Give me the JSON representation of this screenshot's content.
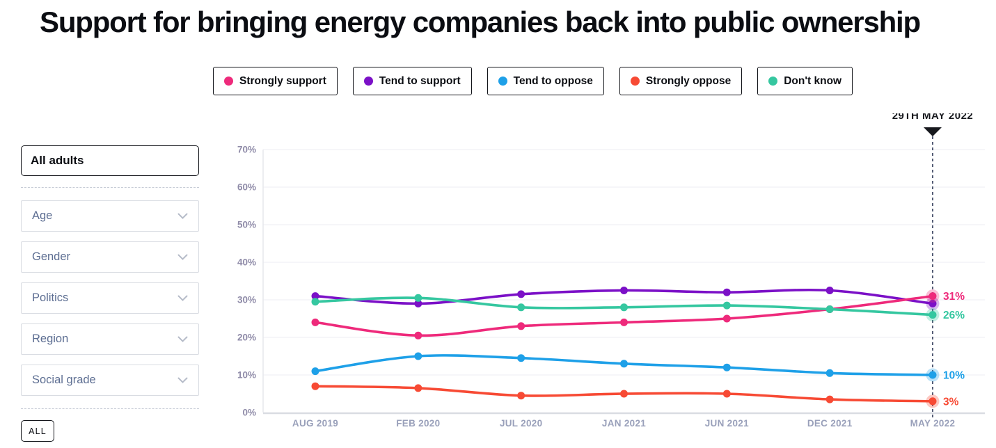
{
  "title": "Support for bringing energy companies back into public ownership",
  "legend": [
    {
      "label": "Strongly support",
      "color": "#ee2a7b"
    },
    {
      "label": "Tend to support",
      "color": "#7b10c7"
    },
    {
      "label": "Tend to oppose",
      "color": "#1ea0e8"
    },
    {
      "label": "Strongly oppose",
      "color": "#f74a34"
    },
    {
      "label": "Don't know",
      "color": "#35c7a0"
    }
  ],
  "sidebar": {
    "selected_filter": "All adults",
    "dropdowns": [
      "Age",
      "Gender",
      "Politics",
      "Region",
      "Social grade"
    ],
    "all_button": "ALL"
  },
  "chart_data": {
    "type": "line",
    "x": [
      "AUG 2019",
      "FEB 2020",
      "JUL 2020",
      "JAN 2021",
      "JUN 2021",
      "DEC 2021",
      "MAY 2022"
    ],
    "yticks": [
      "0%",
      "10%",
      "20%",
      "30%",
      "40%",
      "50%",
      "60%",
      "70%"
    ],
    "ylim": [
      0,
      70
    ],
    "grid": true,
    "legend_position": "top",
    "series": [
      {
        "name": "Strongly support",
        "color": "#ee2a7b",
        "values": [
          24,
          20.5,
          23,
          24,
          25,
          27.5,
          31
        ],
        "end_label": "31%"
      },
      {
        "name": "Tend to support",
        "color": "#7b10c7",
        "values": [
          31,
          29,
          31.5,
          32.5,
          32,
          32.5,
          29
        ],
        "end_label": null
      },
      {
        "name": "Tend to oppose",
        "color": "#1ea0e8",
        "values": [
          11,
          15,
          14.5,
          13,
          12,
          10.5,
          10
        ],
        "end_label": "10%"
      },
      {
        "name": "Strongly oppose",
        "color": "#f74a34",
        "values": [
          7,
          6.5,
          4.5,
          5,
          5,
          3.5,
          3
        ],
        "end_label": "3%"
      },
      {
        "name": "Don't know",
        "color": "#35c7a0",
        "values": [
          29.5,
          30.5,
          28,
          28,
          28.5,
          27.5,
          26
        ],
        "end_label": "26%"
      }
    ],
    "z_order": [
      2,
      3,
      1,
      0,
      4
    ],
    "marker": {
      "label": "29TH MAY 2022",
      "x_index": 6
    },
    "colors": {
      "y_tick": "#8f8ba8",
      "x_tick": "#99a0ba",
      "grid": "#f1f1f5",
      "axis_left": "#e5e7ec",
      "axis_bottom": "#d9dce2",
      "marker": "#2b3554"
    }
  }
}
